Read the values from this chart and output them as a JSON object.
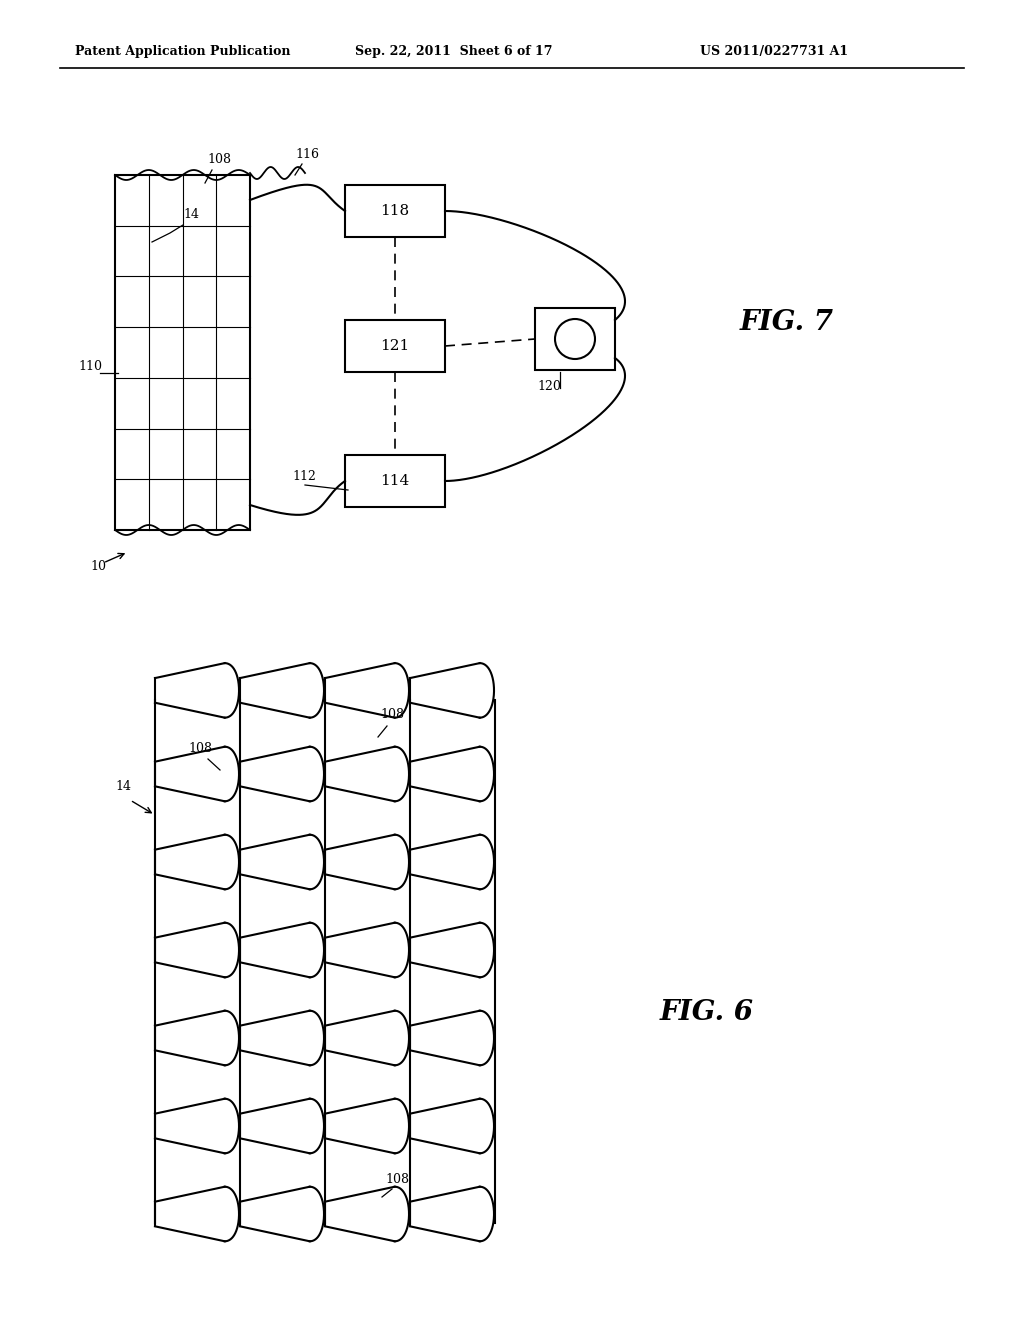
{
  "background_color": "#ffffff",
  "header_left": "Patent Application Publication",
  "header_center": "Sep. 22, 2011  Sheet 6 of 17",
  "header_right": "US 2011/0227731 A1",
  "fig7_label": "FIG. 7",
  "fig6_label": "FIG. 6",
  "label_10": "10",
  "label_14_fig7": "14",
  "label_108_fig7": "108",
  "label_110": "110",
  "label_116": "116",
  "label_118": "118",
  "label_121": "121",
  "label_120": "120",
  "label_112": "112",
  "label_114": "114",
  "label_14_fig6": "14",
  "label_108_fig6_top1": "108",
  "label_108_fig6_top2": "108",
  "label_108_fig6_bot": "108"
}
